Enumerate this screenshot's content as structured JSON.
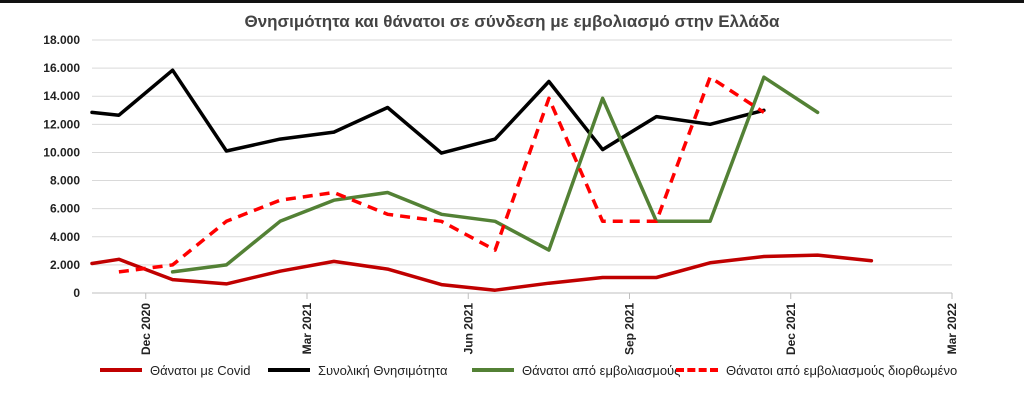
{
  "chart_data": {
    "type": "line",
    "title": "Θνησιμότητα και θάνατοι σε σύνδεση με εμβολιασμό στην Ελλάδα",
    "ylim": [
      0,
      18000
    ],
    "yticks": [
      0,
      2000,
      4000,
      6000,
      8000,
      10000,
      12000,
      14000,
      16000,
      18000
    ],
    "ytick_labels": [
      "0",
      "2.000",
      "4.000",
      "6.000",
      "8.000",
      "10.000",
      "12.000",
      "14.000",
      "16.000",
      "18.000"
    ],
    "xlim": [
      0,
      16
    ],
    "xticks": [
      {
        "pos": 1,
        "label": "Dec 2020"
      },
      {
        "pos": 4,
        "label": "Mar 2021"
      },
      {
        "pos": 7,
        "label": "Jun 2021"
      },
      {
        "pos": 10,
        "label": "Sep 2021"
      },
      {
        "pos": 13,
        "label": "Dec 2021"
      },
      {
        "pos": 16,
        "label": "Mar 2022"
      }
    ],
    "grid": "horizontal",
    "legend_position": "bottom",
    "series": [
      {
        "name": "Θάνατοι με Covid",
        "color": "#C00000",
        "dash": "solid",
        "points": [
          [
            0,
            2100
          ],
          [
            0.5,
            2400
          ],
          [
            1.5,
            950
          ],
          [
            2.5,
            650
          ],
          [
            3.5,
            1550
          ],
          [
            4.5,
            2250
          ],
          [
            5.5,
            1700
          ],
          [
            6.5,
            600
          ],
          [
            7.5,
            200
          ],
          [
            8.5,
            700
          ],
          [
            9.5,
            1100
          ],
          [
            10.5,
            1100
          ],
          [
            11.5,
            2150
          ],
          [
            12.5,
            2600
          ],
          [
            13.5,
            2700
          ],
          [
            14.5,
            2300
          ]
        ]
      },
      {
        "name": "Συνολική Θνησιμότητα",
        "color": "#000000",
        "dash": "solid",
        "points": [
          [
            0,
            12850
          ],
          [
            0.5,
            12650
          ],
          [
            1.5,
            15850
          ],
          [
            2.5,
            10100
          ],
          [
            3.5,
            10950
          ],
          [
            4.5,
            11450
          ],
          [
            5.5,
            13200
          ],
          [
            6.5,
            9950
          ],
          [
            7.5,
            10950
          ],
          [
            8.5,
            15050
          ],
          [
            9.5,
            10200
          ],
          [
            10.5,
            12550
          ],
          [
            11.5,
            12000
          ],
          [
            12.5,
            13000
          ]
        ]
      },
      {
        "name": "Θάνατοι από εμβολιασμούς",
        "color": "#538135",
        "dash": "solid",
        "points": [
          [
            1.5,
            1500
          ],
          [
            2.5,
            2000
          ],
          [
            3.5,
            5100
          ],
          [
            4.5,
            6600
          ],
          [
            5.5,
            7150
          ],
          [
            6.5,
            5600
          ],
          [
            7.5,
            5100
          ],
          [
            8.5,
            3050
          ],
          [
            9.5,
            13850
          ],
          [
            10.5,
            5100
          ],
          [
            11.5,
            5100
          ],
          [
            12.5,
            15350
          ],
          [
            13.5,
            12850
          ]
        ]
      },
      {
        "name": "Θάνατοι από εμβολιασμούς διορθωμένο",
        "color": "#FF0000",
        "dash": "dashed",
        "points": [
          [
            0.5,
            1500
          ],
          [
            1.5,
            2000
          ],
          [
            2.5,
            5100
          ],
          [
            3.5,
            6600
          ],
          [
            4.5,
            7150
          ],
          [
            5.5,
            5600
          ],
          [
            6.5,
            5100
          ],
          [
            7.5,
            3050
          ],
          [
            8.5,
            13850
          ],
          [
            9.5,
            5100
          ],
          [
            10.5,
            5100
          ],
          [
            11.5,
            15350
          ],
          [
            12.5,
            12850
          ]
        ]
      }
    ]
  }
}
